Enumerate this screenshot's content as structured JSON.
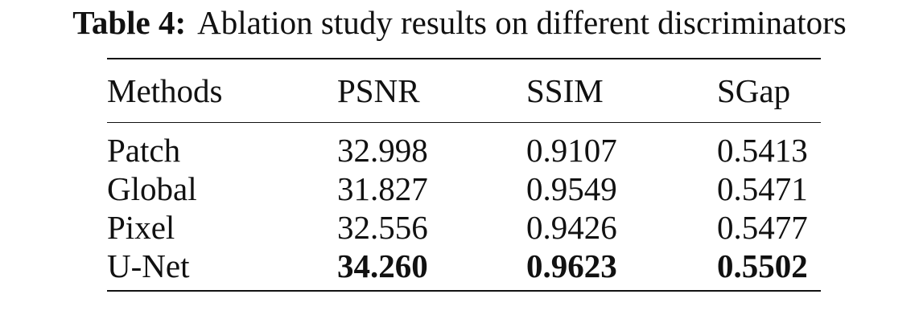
{
  "caption": {
    "label": "Table 4:",
    "text": "Ablation study results on different discriminators"
  },
  "table": {
    "headers": [
      "Methods",
      "PSNR",
      "SSIM",
      "SGap"
    ],
    "rows": [
      {
        "method": "Patch",
        "psnr": "32.998",
        "ssim": "0.9107",
        "sgap": "0.5413"
      },
      {
        "method": "Global",
        "psnr": "31.827",
        "ssim": "0.9549",
        "sgap": "0.5471"
      },
      {
        "method": "Pixel",
        "psnr": "32.556",
        "ssim": "0.9426",
        "sgap": "0.5477"
      },
      {
        "method": "U-Net",
        "psnr": "34.260",
        "ssim": "0.9623",
        "sgap": "0.5502"
      }
    ],
    "best_row": "U-Net"
  }
}
